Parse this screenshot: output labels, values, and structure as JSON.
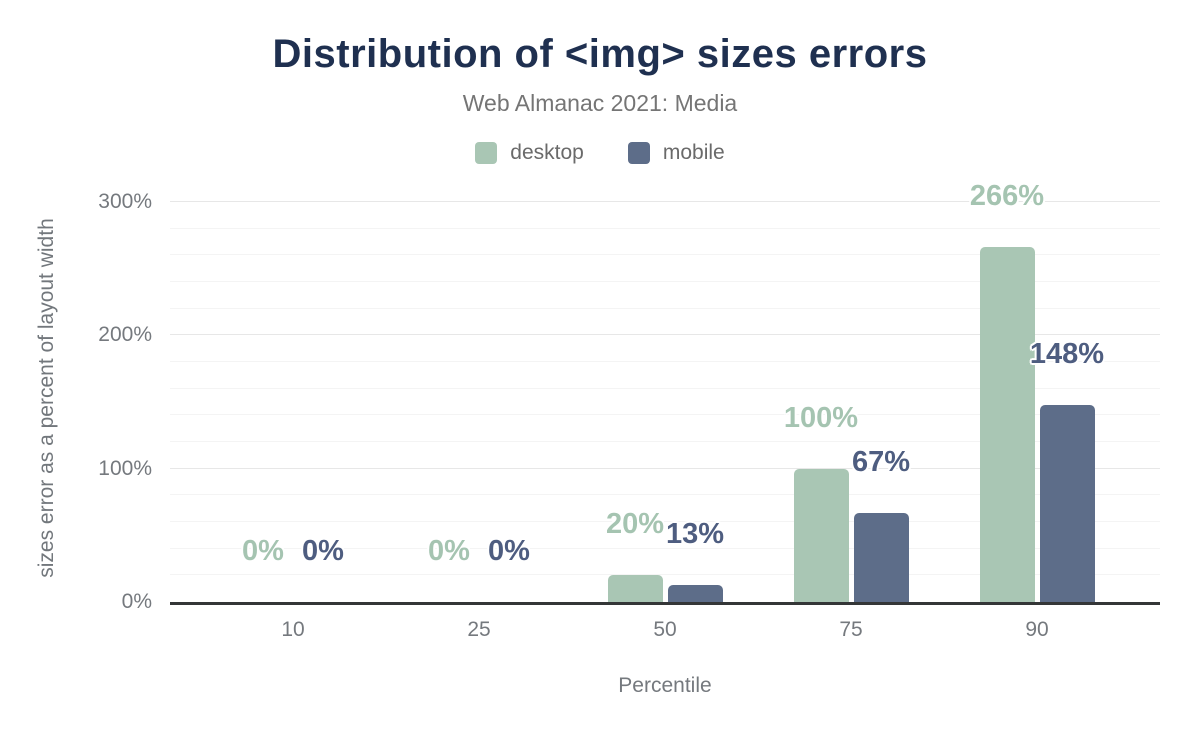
{
  "title": "Distribution of <img> sizes errors",
  "subtitle": "Web Almanac 2021: Media",
  "legend": [
    {
      "label": "desktop",
      "color": "#a9c6b4"
    },
    {
      "label": "mobile",
      "color": "#5d6d89"
    }
  ],
  "chart_data": {
    "type": "bar",
    "title": "Distribution of <img> sizes errors",
    "subtitle": "Web Almanac 2021: Media",
    "categories": [
      "10",
      "25",
      "50",
      "75",
      "90"
    ],
    "series": [
      {
        "name": "desktop",
        "color": "#a9c6b4",
        "label_color": "#a5c4b1",
        "values": [
          0,
          0,
          20,
          100,
          266
        ],
        "labels": [
          "0%",
          "0%",
          "20%",
          "100%",
          "266%"
        ]
      },
      {
        "name": "mobile",
        "color": "#5d6d89",
        "label_color": "#4e5d80",
        "values": [
          0,
          0,
          13,
          67,
          148
        ],
        "labels": [
          "0%",
          "0%",
          "13%",
          "67%",
          "148%"
        ]
      }
    ],
    "xlabel": "Percentile",
    "ylabel": "sizes error as a percent of layout width",
    "y_ticks": [
      {
        "label": "0%",
        "value": 0
      },
      {
        "label": "100%",
        "value": 100
      },
      {
        "label": "200%",
        "value": 200
      },
      {
        "label": "300%",
        "value": 300
      }
    ],
    "ylim": [
      0,
      311
    ],
    "grid": {
      "minor_step_pct": 20,
      "major_step_pct": 100,
      "max_pct": 300
    },
    "legend_position": "top",
    "colors": {
      "title": "#1f3050",
      "axis_line": "#343637",
      "tick_text": "#75797e",
      "grid_major": "#e7e7e7",
      "grid_minor": "#f4f4f4"
    }
  }
}
